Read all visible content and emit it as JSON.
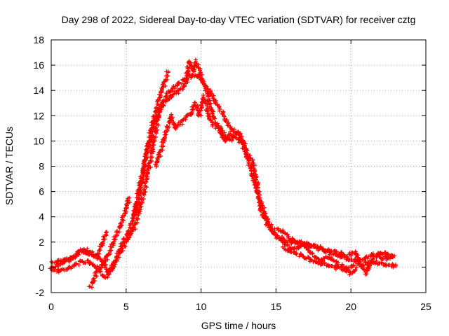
{
  "chart_data": {
    "type": "scatter",
    "title": "Day 298 of 2022, Sidereal Day-to-day VTEC variation (SDTVAR) for receiver cztg",
    "xlabel": "GPS time / hours",
    "ylabel": "SDTVAR / TECUs",
    "xlim": [
      0,
      25
    ],
    "ylim": [
      -2,
      18
    ],
    "xticks": [
      "0",
      "5",
      "10",
      "15",
      "20",
      "25"
    ],
    "yticks": [
      "-2",
      "0",
      "2",
      "4",
      "6",
      "8",
      "10",
      "12",
      "14",
      "16",
      "18"
    ],
    "grid": true,
    "legend": "none",
    "marker": "+",
    "color": "#ff0000",
    "series": [
      {
        "name": "track-1",
        "points": [
          [
            0.0,
            0.0
          ],
          [
            0.5,
            0.2
          ],
          [
            1.0,
            0.5
          ],
          [
            1.5,
            0.9
          ],
          [
            2.0,
            1.3
          ],
          [
            2.5,
            1.0
          ],
          [
            3.0,
            0.8
          ],
          [
            3.5,
            0.5
          ],
          [
            3.8,
            -0.5
          ],
          [
            4.2,
            0.3
          ],
          [
            4.8,
            2.0
          ],
          [
            5.3,
            3.2
          ],
          [
            5.8,
            5.0
          ],
          [
            6.2,
            8.0
          ],
          [
            6.6,
            10.5
          ],
          [
            7.0,
            12.5
          ],
          [
            7.4,
            14.0
          ],
          [
            7.8,
            15.5
          ]
        ]
      },
      {
        "name": "track-2",
        "points": [
          [
            0.0,
            0.3
          ],
          [
            0.6,
            0.5
          ],
          [
            1.2,
            0.6
          ],
          [
            1.8,
            1.1
          ],
          [
            2.2,
            1.4
          ],
          [
            2.7,
            1.2
          ],
          [
            3.0,
            0.9
          ],
          [
            3.4,
            1.8
          ],
          [
            3.7,
            2.8
          ]
        ]
      },
      {
        "name": "track-3",
        "points": [
          [
            2.6,
            -1.6
          ],
          [
            3.0,
            -0.5
          ],
          [
            3.5,
            0.3
          ],
          [
            4.0,
            1.5
          ],
          [
            4.5,
            3.0
          ],
          [
            5.0,
            4.5
          ],
          [
            5.2,
            5.5
          ]
        ]
      },
      {
        "name": "track-4",
        "points": [
          [
            0.1,
            -0.2
          ],
          [
            0.7,
            -0.3
          ],
          [
            1.4,
            0.0
          ],
          [
            2.0,
            0.5
          ],
          [
            2.6,
            0.4
          ],
          [
            3.2,
            -0.2
          ],
          [
            3.6,
            -0.8
          ],
          [
            4.0,
            -0.3
          ],
          [
            4.5,
            1.0
          ],
          [
            5.0,
            2.0
          ],
          [
            5.5,
            3.0
          ],
          [
            5.9,
            4.5
          ],
          [
            6.3,
            6.5
          ],
          [
            6.7,
            9.0
          ],
          [
            7.0,
            11.0
          ],
          [
            7.3,
            12.5
          ],
          [
            7.6,
            13.5
          ],
          [
            8.0,
            14.0
          ],
          [
            8.5,
            14.5
          ],
          [
            9.0,
            15.0
          ],
          [
            9.5,
            15.2
          ],
          [
            10.0,
            15.0
          ],
          [
            10.5,
            14.0
          ],
          [
            11.0,
            13.0
          ],
          [
            11.5,
            12.0
          ],
          [
            12.0,
            11.0
          ],
          [
            12.5,
            10.5
          ],
          [
            13.0,
            9.0
          ],
          [
            13.5,
            7.0
          ],
          [
            14.0,
            5.0
          ],
          [
            14.5,
            3.5
          ],
          [
            15.0,
            2.5
          ],
          [
            15.5,
            2.0
          ],
          [
            16.0,
            1.5
          ],
          [
            16.5,
            1.6
          ],
          [
            17.0,
            1.8
          ],
          [
            17.5,
            1.7
          ],
          [
            18.0,
            1.5
          ],
          [
            18.5,
            1.2
          ],
          [
            19.0,
            1.0
          ],
          [
            19.5,
            0.8
          ],
          [
            20.0,
            0.6
          ],
          [
            20.5,
            0.5
          ],
          [
            21.0,
            0.7
          ],
          [
            21.5,
            1.0
          ],
          [
            22.0,
            0.8
          ],
          [
            22.5,
            0.7
          ],
          [
            22.9,
            0.9
          ]
        ]
      },
      {
        "name": "track-5",
        "points": [
          [
            5.5,
            4.0
          ],
          [
            6.0,
            7.0
          ],
          [
            6.5,
            9.5
          ],
          [
            6.9,
            11.5
          ],
          [
            7.2,
            12.5
          ],
          [
            7.5,
            13.0
          ],
          [
            8.0,
            13.5
          ],
          [
            8.5,
            14.0
          ],
          [
            9.0,
            14.5
          ],
          [
            9.2,
            16.4
          ],
          [
            9.5,
            15.5
          ],
          [
            9.7,
            16.3
          ],
          [
            10.0,
            15.0
          ],
          [
            10.3,
            14.2
          ],
          [
            10.7,
            12.5
          ],
          [
            11.0,
            11.5
          ],
          [
            11.5,
            10.5
          ],
          [
            12.0,
            10.0
          ],
          [
            12.5,
            10.8
          ],
          [
            13.0,
            9.5
          ],
          [
            13.5,
            8.0
          ],
          [
            13.8,
            6.2
          ],
          [
            14.0,
            4.5
          ],
          [
            14.5,
            3.2
          ],
          [
            15.0,
            2.5
          ],
          [
            15.5,
            2.2
          ],
          [
            16.0,
            2.0
          ],
          [
            17.0,
            1.9
          ],
          [
            18.0,
            1.4
          ],
          [
            19.0,
            1.2
          ],
          [
            19.8,
            0.9
          ],
          [
            20.3,
            1.2
          ],
          [
            21.0,
            -0.5
          ],
          [
            21.5,
            0.8
          ],
          [
            22.0,
            1.2
          ],
          [
            22.5,
            1.0
          ],
          [
            22.8,
            0.9
          ]
        ]
      },
      {
        "name": "track-6",
        "points": [
          [
            7.0,
            8.0
          ],
          [
            7.5,
            10.0
          ],
          [
            8.0,
            12.0
          ],
          [
            8.3,
            11.0
          ],
          [
            8.7,
            11.5
          ],
          [
            9.0,
            12.0
          ],
          [
            9.3,
            12.0
          ],
          [
            9.6,
            13.0
          ],
          [
            9.9,
            12.0
          ],
          [
            10.2,
            13.5
          ],
          [
            10.5,
            12.0
          ],
          [
            10.8,
            11.2
          ],
          [
            11.2,
            11.0
          ],
          [
            11.6,
            10.0
          ],
          [
            12.0,
            10.6
          ],
          [
            12.4,
            10.2
          ],
          [
            12.8,
            9.8
          ]
        ]
      },
      {
        "name": "track-7",
        "points": [
          [
            15.5,
            1.5
          ],
          [
            16.0,
            1.2
          ],
          [
            16.5,
            1.0
          ],
          [
            17.0,
            0.8
          ],
          [
            17.5,
            0.5
          ],
          [
            18.0,
            0.3
          ],
          [
            18.5,
            0.2
          ],
          [
            19.0,
            0.0
          ],
          [
            19.5,
            -0.2
          ],
          [
            20.0,
            0.0
          ],
          [
            20.5,
            0.2
          ],
          [
            21.0,
            0.3
          ],
          [
            21.5,
            0.4
          ],
          [
            22.0,
            0.3
          ],
          [
            22.5,
            0.2
          ],
          [
            23.0,
            0.1
          ]
        ]
      },
      {
        "name": "track-8",
        "points": [
          [
            15.0,
            3.0
          ],
          [
            15.5,
            2.8
          ],
          [
            16.0,
            2.2
          ],
          [
            16.5,
            2.0
          ],
          [
            17.0,
            1.6
          ],
          [
            17.5,
            1.0
          ],
          [
            18.0,
            0.5
          ],
          [
            18.5,
            0.8
          ],
          [
            19.0,
            0.4
          ],
          [
            19.5,
            0.0
          ],
          [
            20.0,
            -0.5
          ],
          [
            20.3,
            -0.2
          ]
        ]
      }
    ]
  }
}
